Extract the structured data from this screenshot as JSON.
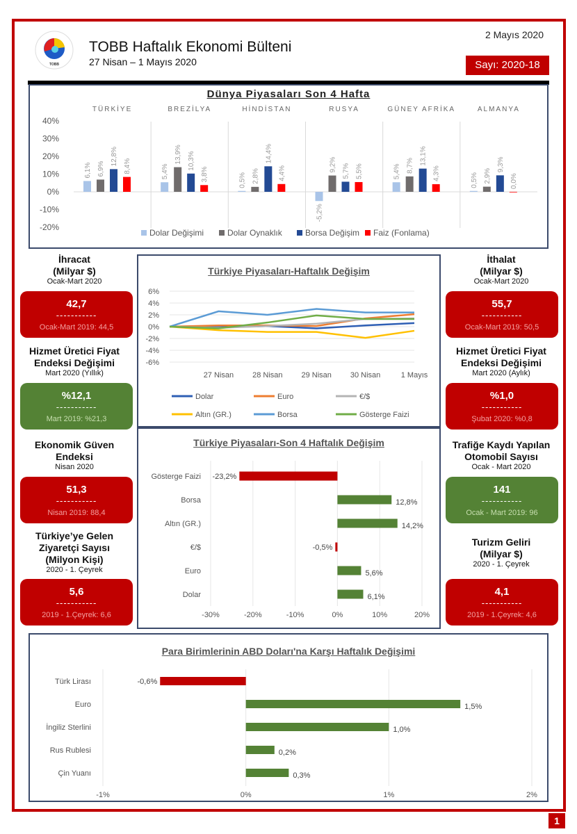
{
  "header": {
    "title": "TOBB Haftalık Ekonomi Bülteni",
    "subtitle": "27 Nisan – 1 Mayıs 2020",
    "date": "2 Mayıs 2020",
    "issue": "Sayı: 2020-18",
    "logo_text": "TOBB",
    "logo_arc_text": "TÜRKİYE ODALAR VE BORSALAR BİRLİĞİ"
  },
  "page_number": "1",
  "colors": {
    "brand_red": "#c00000",
    "positive_green": "#548235",
    "panel_border": "#3b4a6b"
  },
  "kpis_left": [
    {
      "title": "İhracat",
      "title2": "(Milyar $)",
      "period": "Ocak-Mart 2020",
      "value": "42,7",
      "divider": "-----------",
      "previous": "Ocak-Mart 2019: 44,5",
      "status": "red"
    },
    {
      "title": "Hizmet Üretici Fiyat",
      "title2": "Endeksi Değişimi",
      "period": "Mart 2020 (Yıllık)",
      "value": "%12,1",
      "divider": "-----------",
      "previous": "Mart 2019: %21,3",
      "status": "green"
    },
    {
      "title": "Ekonomik Güven",
      "title2": "Endeksi",
      "period": "Nisan 2020",
      "value": "51,3",
      "divider": "-----------",
      "previous": "Nisan 2019: 88,4",
      "status": "red"
    },
    {
      "title": "Türkiye’ye Gelen",
      "title2": "Ziyaretçi Sayısı",
      "title3": "(Milyon Kişi)",
      "period": "2020 - 1. Çeyrek",
      "value": "5,6",
      "divider": "-----------",
      "previous": "2019 - 1.Çeyrek: 6,6",
      "status": "red"
    }
  ],
  "kpis_right": [
    {
      "title": "İthalat",
      "title2": "(Milyar $)",
      "period": "Ocak-Mart 2020",
      "value": "55,7",
      "divider": "-----------",
      "previous": "Ocak-Mart 2019: 50,5",
      "status": "red"
    },
    {
      "title": "Hizmet Üretici Fiyat",
      "title2": "Endeksi Değişimi",
      "period": "Mart 2020 (Aylık)",
      "value": "%1,0",
      "divider": "-----------",
      "previous": "Şubat 2020: %0,8",
      "status": "red"
    },
    {
      "title": "Trafiğe Kaydı Yapılan",
      "title2": "Otomobil Sayısı",
      "period": "Ocak - Mart 2020",
      "value": "141",
      "divider": "-----------",
      "previous": "Ocak - Mart 2019: 96",
      "status": "green"
    },
    {
      "title": "Turizm Geliri",
      "title2": "(Milyar $)",
      "period": "2020 - 1. Çeyrek",
      "value": "4,1",
      "divider": "-----------",
      "previous": "2019 - 1.Çeyrek: 4,6",
      "status": "red"
    }
  ],
  "chart_data": [
    {
      "id": "world",
      "type": "bar",
      "title": "Dünya Piyasaları Son 4 Hafta",
      "categories": [
        "TÜRKİYE",
        "BREZİLYA",
        "HİNDİSTAN",
        "RUSYA",
        "GÜNEY AFRİKA",
        "ALMANYA"
      ],
      "series": [
        {
          "name": "Dolar Değişimi",
          "color": "#a9c4e8",
          "values": [
            6.1,
            5.4,
            0.5,
            -5.2,
            5.4,
            0.5
          ],
          "labels": [
            "6,1%",
            "5,4%",
            "0,5%",
            "-5,2%",
            "5,4%",
            "0,5%"
          ]
        },
        {
          "name": "Dolar Oynaklık",
          "color": "#706c6c",
          "values": [
            6.9,
            13.9,
            2.8,
            9.2,
            8.7,
            2.9
          ],
          "labels": [
            "6,9%",
            "13,9%",
            "2,8%",
            "9,2%",
            "8,7%",
            "2,9%"
          ]
        },
        {
          "name": "Borsa Değişim",
          "color": "#234a94",
          "values": [
            12.8,
            10.3,
            14.4,
            5.7,
            13.1,
            9.3
          ],
          "labels": [
            "12,8%",
            "10,3%",
            "14,4%",
            "5,7%",
            "13,1%",
            "9,3%"
          ]
        },
        {
          "name": "Faiz (Fonlama)",
          "color": "#ff0000",
          "values": [
            8.4,
            3.8,
            4.4,
            5.5,
            4.3,
            0.0
          ],
          "labels": [
            "8,4%",
            "3,8%",
            "4,4%",
            "5,5%",
            "4,3%",
            "0,0%"
          ]
        }
      ],
      "yticks": [
        "40%",
        "30%",
        "20%",
        "10%",
        "0%",
        "-10%",
        "-20%"
      ],
      "ylim": [
        -20,
        40
      ],
      "legend": "bottom"
    },
    {
      "id": "tr_weekly",
      "type": "line",
      "title": "Türkiye Piyasaları-Haftalık Değişim",
      "x": [
        "",
        "27 Nisan",
        "28 Nisan",
        "29 Nisan",
        "30 Nisan",
        "1 Mayıs"
      ],
      "series": [
        {
          "name": "Dolar",
          "color": "#2e5fb4",
          "values": [
            0,
            -0.1,
            0.1,
            -0.3,
            0.2,
            0.6
          ]
        },
        {
          "name": "Euro",
          "color": "#ed7d31",
          "values": [
            0,
            0.2,
            0.2,
            0.1,
            1.4,
            2.1
          ]
        },
        {
          "name": "€/$",
          "color": "#b4b4b4",
          "values": [
            0,
            -0.2,
            0.1,
            0.5,
            1.3,
            1.4
          ]
        },
        {
          "name": "Altın (GR.)",
          "color": "#ffc000",
          "values": [
            0,
            -0.6,
            -0.9,
            -0.9,
            -1.9,
            -0.7
          ]
        },
        {
          "name": "Borsa",
          "color": "#5b9bd5",
          "values": [
            0,
            2.6,
            2.0,
            3.0,
            2.4,
            2.4
          ]
        },
        {
          "name": "Gösterge Faizi",
          "color": "#70ad47",
          "values": [
            0,
            -0.3,
            0.7,
            1.9,
            1.3,
            1.3
          ]
        }
      ],
      "yticks": [
        "6%",
        "4%",
        "2%",
        "0%",
        "-2%",
        "-4%",
        "-6%"
      ],
      "ylim": [
        -6,
        6
      ],
      "legend": "bottom"
    },
    {
      "id": "tr_4week",
      "type": "bar",
      "orientation": "horizontal",
      "title": "Türkiye Piyasaları-Son 4 Haftalık Değişim",
      "categories": [
        "Gösterge Faizi",
        "Borsa",
        "Altın (GR.)",
        "€/$",
        "Euro",
        "Dolar"
      ],
      "values": [
        -23.2,
        12.8,
        14.2,
        -0.5,
        5.6,
        6.1
      ],
      "labels": [
        "-23,2%",
        "12,8%",
        "14,2%",
        "-0,5%",
        "5,6%",
        "6,1%"
      ],
      "xticks": [
        "-30%",
        "-20%",
        "-10%",
        "0%",
        "10%",
        "20%"
      ],
      "xlim": [
        -30,
        20
      ]
    },
    {
      "id": "fx",
      "type": "bar",
      "orientation": "horizontal",
      "title": "Para Birimlerinin ABD Doları'na Karşı Haftalık Değişimi",
      "categories": [
        "Türk Lirası",
        "Euro",
        "İngiliz Sterlini",
        "Rus Rublesi",
        "Çin Yuanı"
      ],
      "values": [
        -0.6,
        1.5,
        1.0,
        0.2,
        0.3
      ],
      "labels": [
        "-0,6%",
        "1,5%",
        "1,0%",
        "0,2%",
        "0,3%"
      ],
      "xticks": [
        "-1%",
        "0%",
        "1%",
        "2%"
      ],
      "xlim": [
        -1,
        2
      ]
    }
  ]
}
